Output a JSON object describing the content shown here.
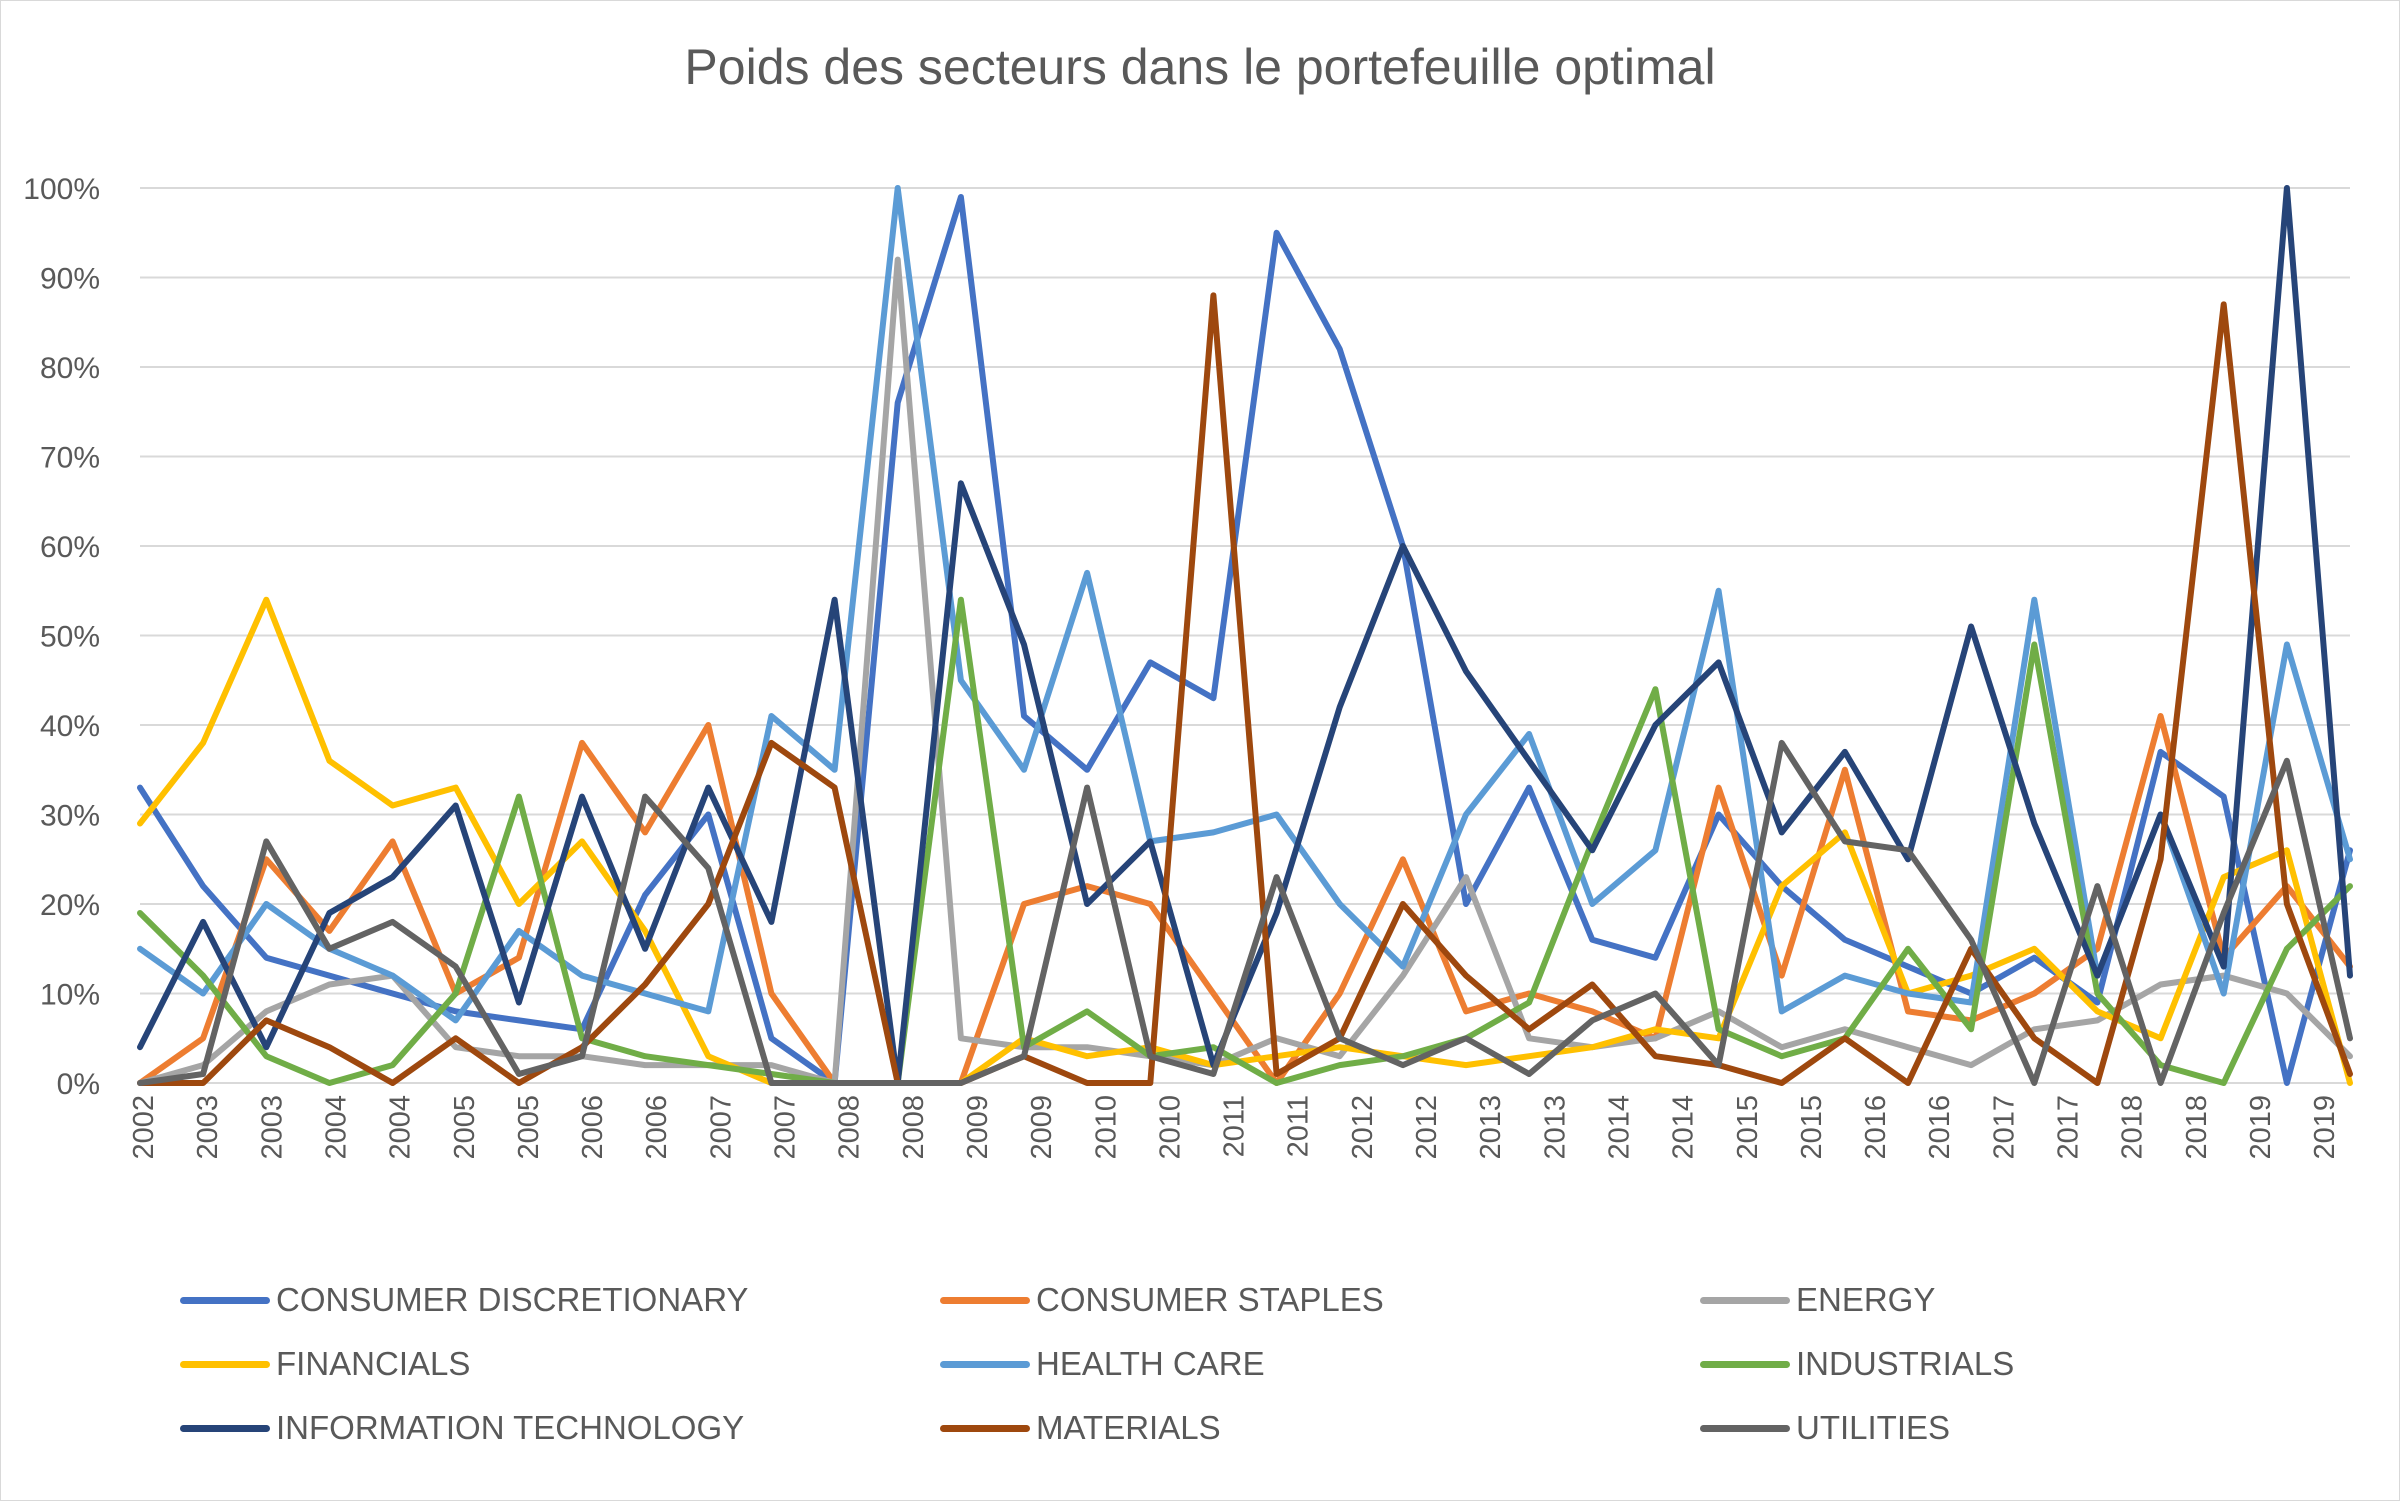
{
  "chart_data": {
    "type": "line",
    "title": "Poids des secteurs dans le portefeuille optimal",
    "xlabel": "",
    "ylabel": "",
    "ylim": [
      0,
      1
    ],
    "y_ticks": [
      "0%",
      "10%",
      "20%",
      "30%",
      "40%",
      "50%",
      "60%",
      "70%",
      "80%",
      "90%",
      "100%"
    ],
    "x_tick_labels": [
      "2002",
      "2003",
      "2003",
      "2004",
      "2004",
      "2005",
      "2005",
      "2006",
      "2006",
      "2007",
      "2007",
      "2008",
      "2008",
      "2009",
      "2009",
      "2010",
      "2010",
      "2011",
      "2011",
      "2012",
      "2012",
      "2013",
      "2013",
      "2014",
      "2014",
      "2015",
      "2015",
      "2016",
      "2016",
      "2017",
      "2017",
      "2018",
      "2018",
      "2019",
      "2019"
    ],
    "grid": true,
    "legend_position": "bottom",
    "x": [
      2002.0,
      2002.5,
      2003.0,
      2003.5,
      2004.0,
      2004.5,
      2005.0,
      2005.5,
      2006.0,
      2006.5,
      2007.0,
      2007.5,
      2008.0,
      2008.5,
      2009.0,
      2009.5,
      2010.0,
      2010.5,
      2011.0,
      2011.5,
      2012.0,
      2012.5,
      2013.0,
      2013.5,
      2014.0,
      2014.5,
      2015.0,
      2015.5,
      2016.0,
      2016.5,
      2017.0,
      2017.5,
      2018.0,
      2018.5,
      2019.0,
      2019.5
    ],
    "series": [
      {
        "name": "CONSUMER DISCRETIONARY",
        "color": "#4472C4",
        "values": [
          0.33,
          0.22,
          0.14,
          0.12,
          0.1,
          0.08,
          0.07,
          0.06,
          0.21,
          0.3,
          0.05,
          0.0,
          0.76,
          0.99,
          0.41,
          0.35,
          0.47,
          0.43,
          0.95,
          0.82,
          0.6,
          0.2,
          0.33,
          0.16,
          0.14,
          0.3,
          0.22,
          0.16,
          0.13,
          0.1,
          0.14,
          0.09,
          0.37,
          0.32,
          0.0,
          0.26
        ]
      },
      {
        "name": "CONSUMER STAPLES",
        "color": "#ED7D31",
        "values": [
          0.0,
          0.05,
          0.25,
          0.17,
          0.27,
          0.1,
          0.14,
          0.38,
          0.28,
          0.4,
          0.1,
          0.0,
          0.0,
          0.0,
          0.2,
          0.22,
          0.2,
          0.1,
          0.0,
          0.1,
          0.25,
          0.08,
          0.1,
          0.08,
          0.05,
          0.33,
          0.12,
          0.35,
          0.08,
          0.07,
          0.1,
          0.15,
          0.41,
          0.14,
          0.22,
          0.13
        ]
      },
      {
        "name": "ENERGY",
        "color": "#A5A5A5",
        "values": [
          0.0,
          0.02,
          0.08,
          0.11,
          0.12,
          0.04,
          0.03,
          0.03,
          0.02,
          0.02,
          0.02,
          0.0,
          0.92,
          0.05,
          0.04,
          0.04,
          0.03,
          0.02,
          0.05,
          0.03,
          0.12,
          0.23,
          0.05,
          0.04,
          0.05,
          0.08,
          0.04,
          0.06,
          0.04,
          0.02,
          0.06,
          0.07,
          0.11,
          0.12,
          0.1,
          0.03
        ]
      },
      {
        "name": "FINANCIALS",
        "color": "#FFC000",
        "values": [
          0.29,
          0.38,
          0.54,
          0.36,
          0.31,
          0.33,
          0.2,
          0.27,
          0.17,
          0.03,
          0.0,
          0.0,
          0.0,
          0.0,
          0.05,
          0.03,
          0.04,
          0.02,
          0.03,
          0.04,
          0.03,
          0.02,
          0.03,
          0.04,
          0.06,
          0.05,
          0.22,
          0.28,
          0.1,
          0.12,
          0.15,
          0.08,
          0.05,
          0.23,
          0.26,
          0.0
        ]
      },
      {
        "name": "HEALTH CARE",
        "color": "#5B9BD5",
        "values": [
          0.15,
          0.1,
          0.2,
          0.15,
          0.12,
          0.07,
          0.17,
          0.12,
          0.1,
          0.08,
          0.41,
          0.35,
          1.0,
          0.45,
          0.35,
          0.57,
          0.27,
          0.28,
          0.3,
          0.2,
          0.13,
          0.3,
          0.39,
          0.2,
          0.26,
          0.55,
          0.08,
          0.12,
          0.1,
          0.09,
          0.54,
          0.12,
          0.3,
          0.1,
          0.49,
          0.25
        ]
      },
      {
        "name": "INDUSTRIALS",
        "color": "#70AD47",
        "values": [
          0.19,
          0.12,
          0.03,
          0.0,
          0.02,
          0.1,
          0.32,
          0.05,
          0.03,
          0.02,
          0.01,
          0.0,
          0.0,
          0.54,
          0.04,
          0.08,
          0.03,
          0.04,
          0.0,
          0.02,
          0.03,
          0.05,
          0.09,
          0.27,
          0.44,
          0.06,
          0.03,
          0.05,
          0.15,
          0.06,
          0.49,
          0.1,
          0.02,
          0.0,
          0.15,
          0.22
        ]
      },
      {
        "name": "INFORMATION TECHNOLOGY",
        "color": "#264478",
        "values": [
          0.04,
          0.18,
          0.04,
          0.19,
          0.23,
          0.31,
          0.09,
          0.32,
          0.15,
          0.33,
          0.18,
          0.54,
          0.0,
          0.67,
          0.49,
          0.2,
          0.27,
          0.02,
          0.19,
          0.42,
          0.6,
          0.46,
          0.36,
          0.26,
          0.4,
          0.47,
          0.28,
          0.37,
          0.25,
          0.51,
          0.29,
          0.12,
          0.3,
          0.13,
          1.0,
          0.12
        ]
      },
      {
        "name": "MATERIALS",
        "color": "#9E480E",
        "values": [
          0.0,
          0.0,
          0.07,
          0.04,
          0.0,
          0.05,
          0.0,
          0.04,
          0.11,
          0.2,
          0.38,
          0.33,
          0.0,
          0.0,
          0.03,
          0.0,
          0.0,
          0.88,
          0.01,
          0.05,
          0.2,
          0.12,
          0.06,
          0.11,
          0.03,
          0.02,
          0.0,
          0.05,
          0.0,
          0.15,
          0.05,
          0.0,
          0.25,
          0.87,
          0.2,
          0.01
        ]
      },
      {
        "name": "UTILITIES",
        "color": "#636363",
        "values": [
          0.0,
          0.01,
          0.27,
          0.15,
          0.18,
          0.13,
          0.01,
          0.03,
          0.32,
          0.24,
          0.0,
          0.0,
          0.0,
          0.0,
          0.03,
          0.33,
          0.03,
          0.01,
          0.23,
          0.05,
          0.02,
          0.05,
          0.01,
          0.07,
          0.1,
          0.02,
          0.38,
          0.27,
          0.26,
          0.16,
          0.0,
          0.22,
          0.0,
          0.19,
          0.36,
          0.05
        ]
      }
    ]
  }
}
